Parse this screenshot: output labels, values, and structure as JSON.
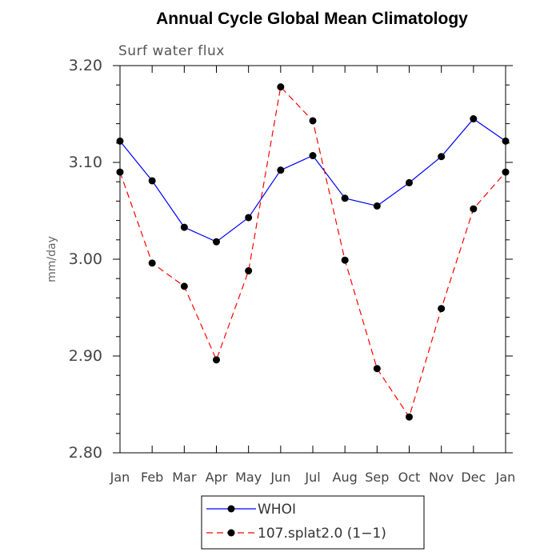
{
  "chart_data": {
    "type": "line",
    "title": "Annual Cycle Global Mean Climatology",
    "subtitle": "Surf water flux",
    "xlabel": "",
    "ylabel": "mm/day",
    "categories": [
      "Jan",
      "Feb",
      "Mar",
      "Apr",
      "May",
      "Jun",
      "Jul",
      "Aug",
      "Sep",
      "Oct",
      "Nov",
      "Dec",
      "Jan"
    ],
    "ylim": [
      2.8,
      3.2
    ],
    "yticks": [
      "2.80",
      "2.90",
      "3.00",
      "3.10",
      "3.20"
    ],
    "grid": false,
    "legend_position": "bottom",
    "series": [
      {
        "name": "WHOI",
        "color": "#0000ff",
        "line_style": "solid",
        "marker": "filled-circle",
        "values": [
          3.122,
          3.081,
          3.033,
          3.018,
          3.043,
          3.092,
          3.107,
          3.063,
          3.055,
          3.079,
          3.106,
          3.145,
          3.122
        ]
      },
      {
        "name": "107.splat2.0 (1−1)",
        "color": "#ff0000",
        "line_style": "dashed",
        "marker": "filled-circle",
        "values": [
          3.09,
          2.996,
          2.972,
          2.896,
          2.988,
          3.178,
          3.143,
          2.999,
          2.887,
          2.837,
          2.949,
          3.052,
          3.09
        ]
      }
    ]
  }
}
